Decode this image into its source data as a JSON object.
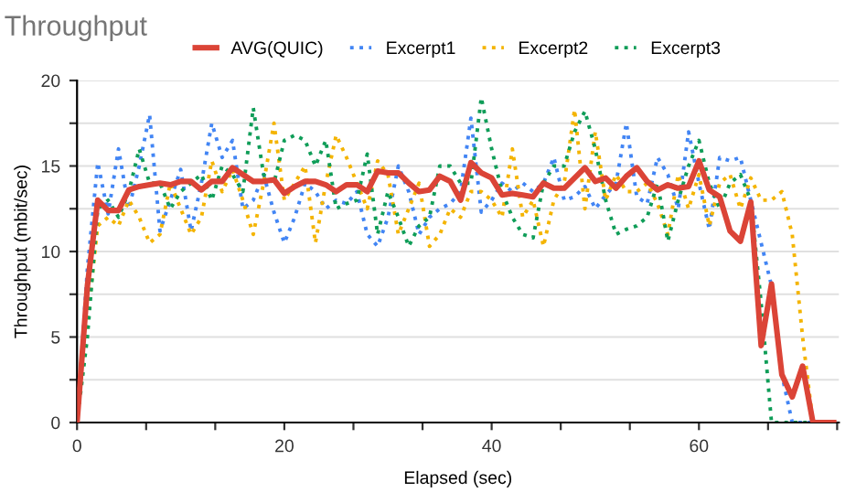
{
  "chart_data": {
    "type": "line",
    "title": "Throughput",
    "xlabel": "Elapsed (sec)",
    "ylabel": "Throughput (mbit/sec)",
    "x": [
      0,
      1,
      2,
      3,
      4,
      5,
      6,
      7,
      8,
      9,
      10,
      11,
      12,
      13,
      14,
      15,
      16,
      17,
      18,
      19,
      20,
      21,
      22,
      23,
      24,
      25,
      26,
      27,
      28,
      29,
      30,
      31,
      32,
      33,
      34,
      35,
      36,
      37,
      38,
      39,
      40,
      41,
      42,
      43,
      44,
      45,
      46,
      47,
      48,
      49,
      50,
      51,
      52,
      53,
      54,
      55,
      56,
      57,
      58,
      59,
      60,
      61,
      62,
      63,
      64,
      65,
      66,
      67,
      68,
      69,
      70,
      71,
      72,
      73
    ],
    "series": [
      {
        "name": "AVG(QUIC)",
        "color": "#db4437",
        "line_style": "solid",
        "values": [
          0,
          8,
          13,
          12.4,
          12.4,
          13.6,
          13.8,
          13.9,
          14,
          13.9,
          14.1,
          14.1,
          13.6,
          14.1,
          14.1,
          14.9,
          14.5,
          14.1,
          14.1,
          14.2,
          13.4,
          13.8,
          14.1,
          14.1,
          13.9,
          13.5,
          13.9,
          13.9,
          13.5,
          14.7,
          14.6,
          14.6,
          14,
          13.5,
          13.6,
          14.4,
          14.1,
          13,
          15.2,
          14.6,
          14.3,
          13.3,
          13.4,
          13.3,
          13.2,
          14,
          13.7,
          13.7,
          14.3,
          14.9,
          14.1,
          14.3,
          13.7,
          14.4,
          14.9,
          14.1,
          13.6,
          13.9,
          13.7,
          13.8,
          15.3,
          13.6,
          13.2,
          11.2,
          10.6,
          12.9,
          4.5,
          8.1,
          2.8,
          1.5,
          3.3,
          0,
          0,
          0
        ]
      },
      {
        "name": "Excerpt1",
        "color": "#4285f4",
        "line_style": "dotted",
        "values": [
          0,
          9,
          15.2,
          12.2,
          16,
          12.5,
          15,
          18,
          11.2,
          13,
          14.8,
          11.2,
          14,
          17.5,
          15.5,
          16.5,
          12.5,
          13,
          14.5,
          12.3,
          10.5,
          12,
          14,
          13.5,
          12.5,
          13,
          12.8,
          13.5,
          11,
          10.3,
          12,
          15,
          13.5,
          11,
          12,
          12.5,
          12.8,
          13.5,
          17.8,
          12.3,
          13,
          14,
          13.5,
          14,
          13.5,
          14,
          15.5,
          13,
          13.2,
          13.8,
          12.5,
          13.3,
          14,
          17.5,
          13.2,
          12.8,
          15.5,
          14.5,
          12.5,
          17,
          14,
          11.3,
          15.5,
          15.3,
          15.5,
          13,
          10.5,
          8,
          2.8,
          0,
          0,
          0,
          0,
          0
        ]
      },
      {
        "name": "Excerpt2",
        "color": "#f4b400",
        "line_style": "dotted",
        "values": [
          0,
          6,
          11.5,
          12,
          11.5,
          13,
          12,
          10.5,
          11,
          14,
          12.5,
          11,
          12,
          15.3,
          13.5,
          14.8,
          13,
          11,
          14,
          17.5,
          13,
          14,
          15,
          10.5,
          14,
          16.8,
          15.5,
          14,
          12.5,
          15.3,
          14.5,
          11,
          12.5,
          14,
          10.3,
          11,
          12.5,
          12,
          13.5,
          13.5,
          13,
          12,
          16,
          12,
          13,
          10.3,
          13,
          14,
          18.3,
          12.5,
          17,
          13,
          14.5,
          13.5,
          13.5,
          14,
          12.8,
          11,
          14.5,
          12.5,
          14.5,
          11.5,
          14,
          14.5,
          12.5,
          14.3,
          13,
          13,
          13.5,
          11,
          5,
          0,
          0,
          0
        ]
      },
      {
        "name": "Excerpt3",
        "color": "#0f9d58",
        "line_style": "dotted",
        "values": [
          0,
          5,
          12.5,
          13,
          12,
          13.5,
          16,
          14,
          14,
          12.5,
          13.5,
          14,
          14.5,
          13,
          15,
          14.5,
          13.5,
          18.4,
          14.5,
          14,
          16.5,
          16.8,
          16.5,
          15,
          16.5,
          12.5,
          12.8,
          13,
          15.7,
          11,
          13.5,
          12,
          10.3,
          11.5,
          12,
          15,
          15,
          14,
          14,
          19,
          16,
          13.5,
          12,
          11,
          10.8,
          14,
          15,
          15,
          17,
          18.2,
          16,
          13,
          11,
          11.3,
          11.5,
          12,
          14,
          10.6,
          13,
          15,
          16.5,
          14,
          12.5,
          14,
          14.5,
          13,
          7,
          0,
          0,
          0,
          0,
          0,
          0,
          0
        ]
      }
    ],
    "xlim": [
      0,
      73.5
    ],
    "xticks": [
      0,
      {
        "value": 6.667,
        "label": null
      },
      {
        "value": 13.333,
        "label": null
      },
      20,
      {
        "value": 26.667,
        "label": null
      },
      {
        "value": 33.333,
        "label": null
      },
      40,
      {
        "value": 46.667,
        "label": null
      },
      {
        "value": 53.333,
        "label": null
      },
      60,
      {
        "value": 66.667,
        "label": null
      },
      {
        "value": 73.333,
        "label": null
      }
    ],
    "ylim": [
      0,
      20
    ],
    "yticks": [
      0,
      {
        "value": 2.5,
        "label": null
      },
      5,
      {
        "value": 7.5,
        "label": null
      },
      10,
      {
        "value": 12.5,
        "label": null
      },
      15,
      {
        "value": 17.5,
        "label": null
      },
      20
    ],
    "grid": "y",
    "legend": "top",
    "marker": "none"
  }
}
